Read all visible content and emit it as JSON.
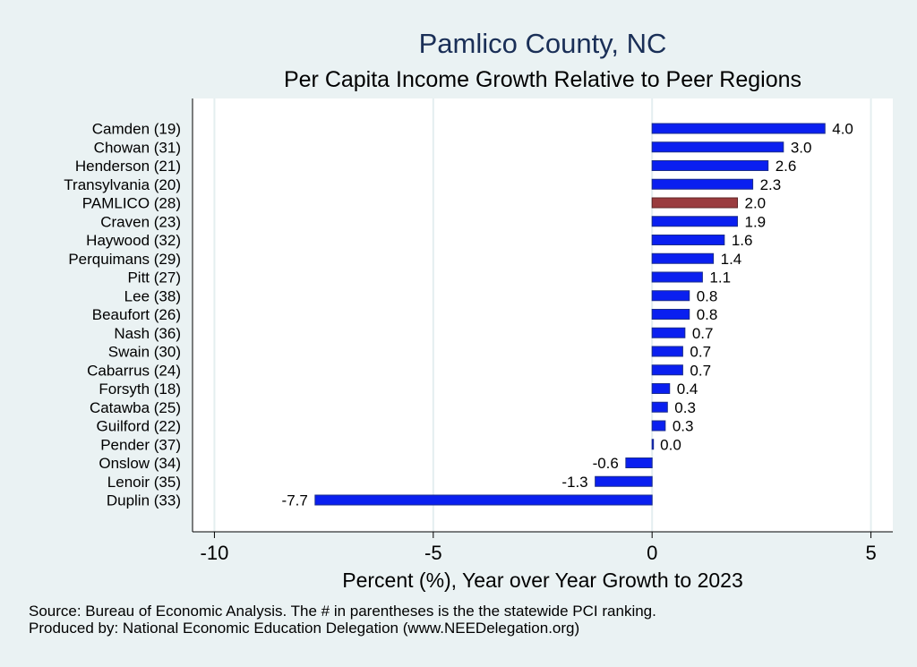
{
  "chart_data": {
    "type": "bar",
    "orientation": "horizontal",
    "title": "Pamlico County, NC",
    "subtitle": "Per Capita Income Growth Relative to Peer Regions",
    "xlabel": "Percent (%), Year over Year Growth to 2023",
    "ylabel": "",
    "xlim": [
      -10.5,
      5.5
    ],
    "xticks": [
      -10,
      -5,
      0,
      5
    ],
    "xtick_labels": [
      "-10",
      "-5",
      "0",
      "5"
    ],
    "grid": true,
    "legend": "none",
    "categories": [
      "Camden (19)",
      "Chowan (31)",
      "Henderson (21)",
      "Transylvania (20)",
      "PAMLICO (28)",
      "Craven (23)",
      "Haywood (32)",
      "Perquimans (29)",
      "Pitt (27)",
      "Lee (38)",
      "Beaufort (26)",
      "Nash (36)",
      "Swain (30)",
      "Cabarrus (24)",
      "Forsyth (18)",
      "Catawba (25)",
      "Guilford (22)",
      "Pender (37)",
      "Onslow (34)",
      "Lenoir (35)",
      "Duplin (33)"
    ],
    "values": [
      3.95,
      3.0,
      2.65,
      2.3,
      1.95,
      1.95,
      1.65,
      1.4,
      1.15,
      0.85,
      0.85,
      0.75,
      0.7,
      0.7,
      0.4,
      0.35,
      0.3,
      0.02,
      -0.6,
      -1.3,
      -7.7
    ],
    "value_labels": [
      "4.0",
      "3.0",
      "2.6",
      "2.3",
      "2.0",
      "1.9",
      "1.6",
      "1.4",
      "1.1",
      "0.8",
      "0.8",
      "0.7",
      "0.7",
      "0.7",
      "0.4",
      "0.3",
      "0.3",
      "0.0",
      "-0.6",
      "-1.3",
      "-7.7"
    ],
    "highlight_category": "PAMLICO (28)",
    "colors": {
      "default": "#0a1ff0",
      "highlight": "#9a3b3e",
      "title": "#1a2f57",
      "grid": "#e4eef0"
    }
  },
  "notes": {
    "source": "Source: Bureau of Economic Analysis. The # in parentheses is the the statewide PCI ranking.",
    "producer": "Produced by: National Economic Education Delegation (www.NEEDelegation.org)"
  }
}
